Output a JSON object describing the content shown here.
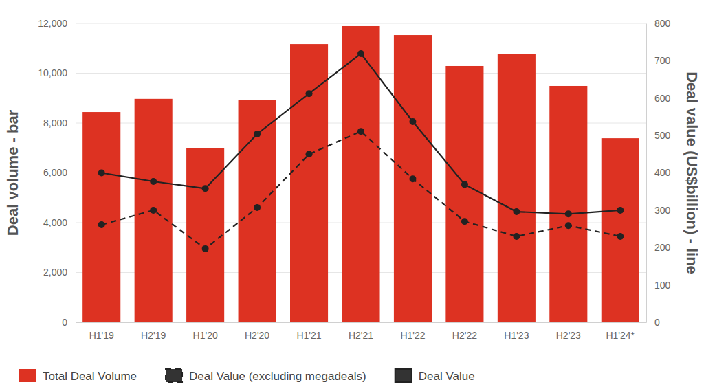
{
  "chart_data": {
    "type": "bar",
    "categories": [
      "H1'19",
      "H2'19",
      "H1'20",
      "H2'20",
      "H1'21",
      "H2'21",
      "H1'22",
      "H2'22",
      "H1'23",
      "H2'23",
      "H1'24*"
    ],
    "series": [
      {
        "name": "Total Deal Volume",
        "type": "bar",
        "color": "#dd3222",
        "values": [
          8440,
          8970,
          6980,
          8910,
          11170,
          11890,
          11530,
          10290,
          10760,
          9490,
          7390
        ]
      },
      {
        "name": "Deal Value (excluding megadeals)",
        "type": "line",
        "axis": "y2",
        "color": "#222222",
        "line_style": "dashed",
        "marker": "circle",
        "values": [
          261,
          300,
          197,
          307,
          450,
          511,
          384,
          270,
          230,
          259,
          230
        ]
      },
      {
        "name": "Deal Value",
        "type": "line",
        "axis": "y2",
        "color": "#222222",
        "line_style": "solid",
        "marker": "circle",
        "values": [
          400,
          377,
          358,
          504,
          612,
          719,
          537,
          369,
          296,
          290,
          300
        ]
      }
    ],
    "y_label": "Deal volume - bar",
    "y2_label": "Deal value (US$billion) - line",
    "ylim": [
      0,
      12000
    ],
    "yticks": [
      0,
      {
        "value": 2000,
        "label": "2,000"
      },
      {
        "value": 4000,
        "label": "4,000"
      },
      {
        "value": 6000,
        "label": "6,000"
      },
      {
        "value": 8000,
        "label": "8,000"
      },
      {
        "value": 10000,
        "label": "10,000"
      },
      {
        "value": 12000,
        "label": "12,000"
      }
    ],
    "y2lim": [
      0,
      800
    ],
    "y2ticks": [
      0,
      100,
      200,
      300,
      400,
      500,
      600,
      700,
      800
    ],
    "grid": true,
    "legend": "bottom"
  }
}
